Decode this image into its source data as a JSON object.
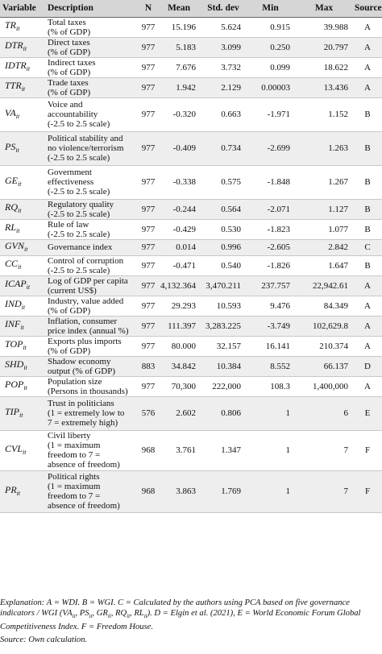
{
  "columns": [
    "Variable",
    "Description",
    "N",
    "Mean",
    "Std. dev",
    "Min",
    "Max",
    "Source"
  ],
  "rows": [
    {
      "var": "TR",
      "sub": "it",
      "desc": "Total taxes\n(% of GDP)",
      "n": "977",
      "mean": "15.196",
      "sd": "5.624",
      "min": "0.915",
      "max": "39.988",
      "src": "A"
    },
    {
      "var": "DTR",
      "sub": "it",
      "desc": "Direct taxes\n(% of GDP)",
      "n": "977",
      "mean": "5.183",
      "sd": "3.099",
      "min": "0.250",
      "max": "20.797",
      "src": "A"
    },
    {
      "var": "IDTR",
      "sub": "it",
      "desc": "Indirect taxes\n(% of GDP)",
      "n": "977",
      "mean": "7.676",
      "sd": "3.732",
      "min": "0.099",
      "max": "18.622",
      "src": "A"
    },
    {
      "var": "TTR",
      "sub": "it",
      "desc": "Trade taxes\n(% of GDP)",
      "n": "977",
      "mean": "1.942",
      "sd": "2.129",
      "min": "0.00003",
      "max": "13.436",
      "src": "A"
    },
    {
      "var": "VA",
      "sub": "it",
      "desc": "Voice and\naccountability\n(-2.5 to 2.5 scale)",
      "n": "977",
      "mean": "-0.320",
      "sd": "0.663",
      "min": "-1.971",
      "max": "1.152",
      "src": "B"
    },
    {
      "var": "PS",
      "sub": "it",
      "desc": "Political stability and\nno violence/terrorism\n(-2.5 to 2.5 scale)",
      "n": "977",
      "mean": "-0.409",
      "sd": "0.734",
      "min": "-2.699",
      "max": "1.263",
      "src": "B"
    },
    {
      "var": "GE",
      "sub": "it",
      "desc": "Government\neffectiveness\n(-2.5 to 2.5 scale)",
      "n": "977",
      "mean": "-0.338",
      "sd": "0.575",
      "min": "-1.848",
      "max": "1.267",
      "src": "B"
    },
    {
      "var": "RQ",
      "sub": "it",
      "desc": "Regulatory quality\n(-2.5 to 2.5 scale)",
      "n": "977",
      "mean": "-0.244",
      "sd": "0.564",
      "min": "-2.071",
      "max": "1.127",
      "src": "B"
    },
    {
      "var": "RL",
      "sub": "it",
      "desc": "Rule of law\n(-2.5 to 2.5 scale)",
      "n": "977",
      "mean": "-0.429",
      "sd": "0.530",
      "min": "-1.823",
      "max": "1.077",
      "src": "B"
    },
    {
      "var": "GVN",
      "sub": "it",
      "desc": "Governance index",
      "n": "977",
      "mean": "0.014",
      "sd": "0.996",
      "min": "-2.605",
      "max": "2.842",
      "src": "C"
    },
    {
      "var": "CC",
      "sub": "it",
      "desc": "Control of corruption\n(-2.5 to 2.5 scale)",
      "n": "977",
      "mean": "-0.471",
      "sd": "0.540",
      "min": "-1.826",
      "max": "1.647",
      "src": "B"
    },
    {
      "var": "ICAP",
      "sub": "it",
      "desc": "Log of GDP per capita\n(current US$)",
      "n": "977",
      "mean": "4,132.364",
      "sd": "3,470.211",
      "min": "237.757",
      "max": "22,942.61",
      "src": "A"
    },
    {
      "var": "IND",
      "sub": "it",
      "desc": "Industry, value added\n(% of GDP)",
      "n": "977",
      "mean": "29.293",
      "sd": "10.593",
      "min": "9.476",
      "max": "84.349",
      "src": "A"
    },
    {
      "var": "INF",
      "sub": "it",
      "desc": "Inflation, consumer\nprice index (annual %)",
      "n": "977",
      "mean": "111.397",
      "sd": "3,283.225",
      "min": "-3.749",
      "max": "102,629.8",
      "src": "A"
    },
    {
      "var": "TOP",
      "sub": "it",
      "desc": "Exports plus imports\n(% of GDP)",
      "n": "977",
      "mean": "80.000",
      "sd": "32.157",
      "min": "16.141",
      "max": "210.374",
      "src": "A"
    },
    {
      "var": "SHD",
      "sub": "it",
      "desc": "Shadow economy\noutput (% of GDP)",
      "n": "883",
      "mean": "34.842",
      "sd": "10.384",
      "min": "8.552",
      "max": "66.137",
      "src": "D"
    },
    {
      "var": "POP",
      "sub": "it",
      "desc": "Population size\n(Persons in thousands)",
      "n": "977",
      "mean": "70,300",
      "sd": "222,000",
      "min": "108.3",
      "max": "1,400,000",
      "src": "A"
    },
    {
      "var": "TIP",
      "sub": "it",
      "desc": "Trust in politicians\n(1 = extremely low to\n7 = extremely high)",
      "n": "576",
      "mean": "2.602",
      "sd": "0.806",
      "min": "1",
      "max": "6",
      "src": "E"
    },
    {
      "var": "CVL",
      "sub": "it",
      "desc": "Civil liberty\n(1 = maximum\nfreedom to 7 =\nabsence of freedom)",
      "n": "968",
      "mean": "3.761",
      "sd": "1.347",
      "min": "1",
      "max": "7",
      "src": "F"
    },
    {
      "var": "PR",
      "sub": "it",
      "desc": "Political rights\n(1 = maximum\nfreedom to 7 =\nabsence of freedom)",
      "n": "968",
      "mean": "3.863",
      "sd": "1.769",
      "min": "1",
      "max": "7",
      "src": "F"
    }
  ],
  "footnote": "Explanation: A = WDI. B = WGI. C = Calculated by the authors using PCA based on five governance indicators / WGI (VAit, PSit, GRit, RQit, RLit). D = Elgin et al. (2021), E = World Economic Forum Global Competitiveness Index. F = Freedom House.",
  "source": "Source: Own calculation."
}
